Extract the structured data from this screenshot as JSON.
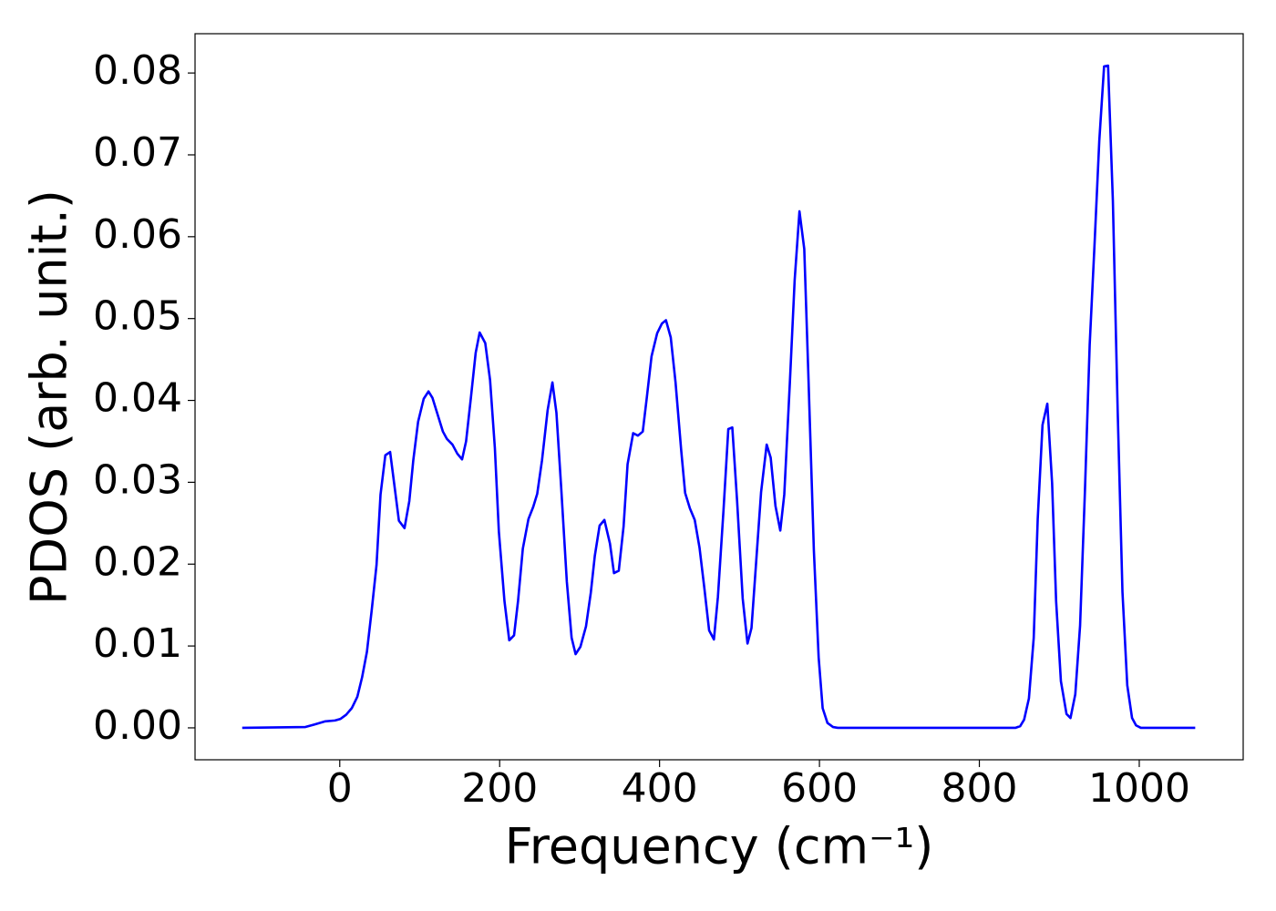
{
  "chart_data": {
    "type": "line",
    "xlabel": "Frequency (cm⁻¹)",
    "ylabel": "PDOS (arb. unit.)",
    "color": "#0000ff",
    "xlim": [
      -181,
      1130
    ],
    "ylim": [
      -0.0039,
      0.0848
    ],
    "xticks": [
      0,
      200,
      400,
      600,
      800,
      1000
    ],
    "yticks": [
      {
        "value": 0,
        "label": "0.00"
      },
      0.01,
      0.02,
      0.03,
      0.04,
      0.05,
      0.06,
      0.07,
      0.08
    ],
    "grid": false,
    "x": [
      -122,
      -43,
      -32,
      -18,
      -6,
      1,
      8,
      15,
      22,
      28,
      34,
      40,
      46,
      51,
      57,
      63,
      68,
      74,
      81,
      87,
      92,
      98,
      105,
      111,
      116,
      122,
      129,
      134,
      141,
      147,
      153,
      158,
      164,
      170,
      175,
      182,
      188,
      194,
      199,
      206,
      212,
      218,
      223,
      229,
      236,
      242,
      247,
      253,
      260,
      266,
      271,
      277,
      284,
      290,
      295,
      301,
      308,
      314,
      319,
      325,
      331,
      338,
      343,
      349,
      355,
      360,
      367,
      373,
      379,
      384,
      390,
      397,
      403,
      408,
      414,
      420,
      427,
      432,
      438,
      444,
      450,
      456,
      462,
      468,
      473,
      480,
      486,
      491,
      497,
      504,
      510,
      515,
      521,
      527,
      534,
      539,
      545,
      551,
      556,
      563,
      569,
      575,
      581,
      586,
      593,
      599,
      604,
      610,
      617,
      623,
      845,
      851,
      856,
      862,
      868,
      873,
      879,
      885,
      891,
      896,
      902,
      909,
      914,
      920,
      926,
      932,
      938,
      944,
      950,
      956,
      961,
      967,
      973,
      979,
      985,
      991,
      996,
      1002,
      1070
    ],
    "values": [
      0,
      0.0001,
      0.0004,
      0.0008,
      0.0009,
      0.0011,
      0.0016,
      0.0024,
      0.0038,
      0.0062,
      0.0093,
      0.0144,
      0.0199,
      0.0285,
      0.0333,
      0.0337,
      0.0299,
      0.0253,
      0.0244,
      0.0277,
      0.0327,
      0.0374,
      0.0402,
      0.0411,
      0.0403,
      0.0384,
      0.0362,
      0.0353,
      0.0346,
      0.0335,
      0.0328,
      0.035,
      0.0403,
      0.0458,
      0.0483,
      0.047,
      0.0425,
      0.0342,
      0.024,
      0.0155,
      0.0107,
      0.0113,
      0.0155,
      0.0219,
      0.0255,
      0.027,
      0.0286,
      0.0327,
      0.0388,
      0.0422,
      0.0385,
      0.0293,
      0.0179,
      0.011,
      0.009,
      0.0099,
      0.0124,
      0.0165,
      0.021,
      0.0247,
      0.0254,
      0.0225,
      0.0189,
      0.0192,
      0.0246,
      0.0322,
      0.036,
      0.0357,
      0.0362,
      0.0403,
      0.0454,
      0.0482,
      0.0494,
      0.0498,
      0.0477,
      0.0422,
      0.034,
      0.0287,
      0.0268,
      0.0254,
      0.022,
      0.0171,
      0.0119,
      0.0108,
      0.016,
      0.0266,
      0.0365,
      0.0367,
      0.0277,
      0.0158,
      0.0103,
      0.0122,
      0.0205,
      0.0288,
      0.0346,
      0.033,
      0.0271,
      0.0241,
      0.0285,
      0.0422,
      0.0547,
      0.0631,
      0.0585,
      0.0435,
      0.0217,
      0.0086,
      0.0024,
      0.0006,
      0.0001,
      0,
      0,
      0.0002,
      0.001,
      0.0036,
      0.011,
      0.0255,
      0.037,
      0.0396,
      0.0299,
      0.0155,
      0.0057,
      0.0017,
      0.0012,
      0.0041,
      0.0125,
      0.0288,
      0.0468,
      0.0589,
      0.0717,
      0.0808,
      0.0809,
      0.0644,
      0.0388,
      0.0166,
      0.0052,
      0.0012,
      0.0003,
      0,
      0
    ]
  }
}
